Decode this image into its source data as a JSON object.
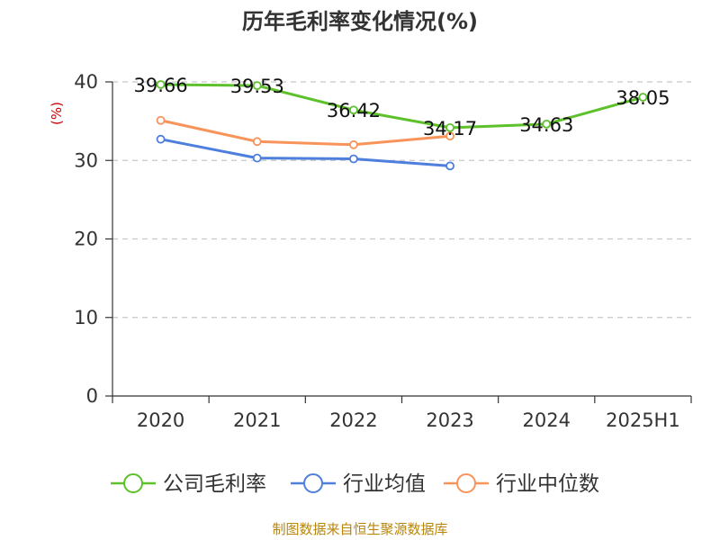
{
  "chart_data": {
    "type": "line",
    "title": "历年毛利率变化情况(%)",
    "ylabel": "(%)",
    "categories": [
      "2020",
      "2021",
      "2022",
      "2023",
      "2024",
      "2025H1"
    ],
    "ylim": [
      0,
      40
    ],
    "yticks": [
      0,
      10,
      20,
      30,
      40
    ],
    "grid": true,
    "legend_position": "bottom",
    "series": [
      {
        "name": "公司毛利率",
        "color": "#5dc12b",
        "values": [
          39.66,
          39.53,
          36.42,
          34.17,
          34.63,
          38.05
        ],
        "data_labels": [
          "39.66",
          "39.53",
          "36.42",
          "34.17",
          "34.63",
          "38.05"
        ]
      },
      {
        "name": "行业均值",
        "color": "#4e7fdc",
        "values": [
          32.7,
          30.3,
          30.2,
          29.3,
          null,
          null
        ]
      },
      {
        "name": "行业中位数",
        "color": "#f8935a",
        "values": [
          35.1,
          32.4,
          32.0,
          33.1,
          null,
          null
        ]
      }
    ]
  },
  "source_note": "制图数据来自恒生聚源数据库"
}
